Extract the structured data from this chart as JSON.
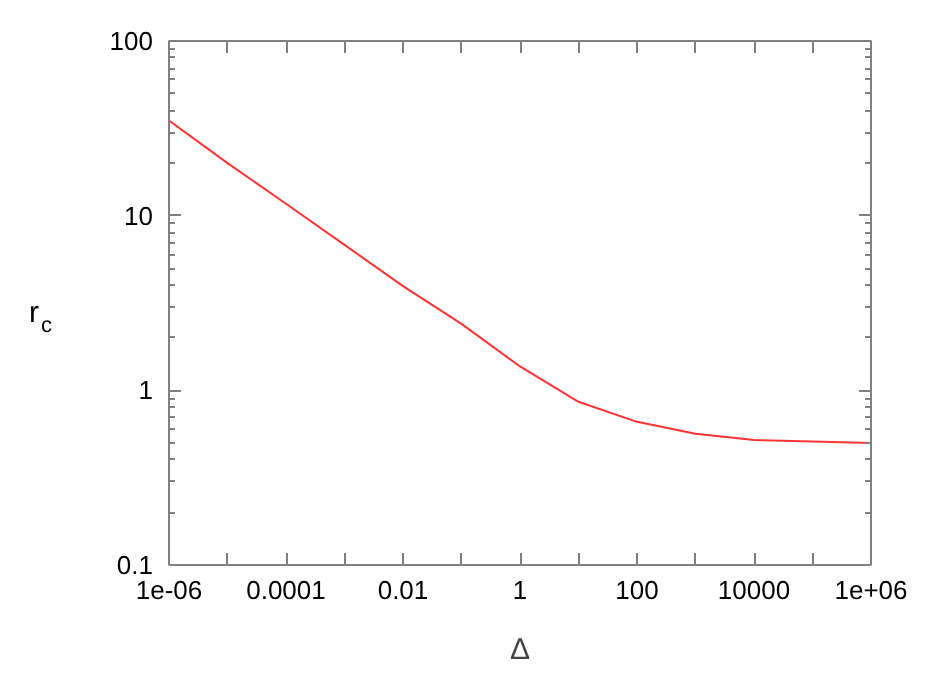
{
  "chart_data": {
    "type": "line",
    "xlabel": "Δ",
    "ylabel": "r$_{c}$",
    "log": "xy",
    "grid": false,
    "marker": "none",
    "line_style": "solid",
    "x": [
      1e-06,
      1e-05,
      0.0001,
      0.001,
      0.01,
      0.1,
      1,
      10,
      100,
      1000,
      10000,
      100000,
      1000000
    ],
    "series": [
      {
        "color": "#ff3333",
        "values": [
          35,
          20,
          11.7,
          6.8,
          3.95,
          2.4,
          1.37,
          0.86,
          0.66,
          0.564,
          0.52,
          0.51,
          0.5
        ]
      }
    ],
    "xlim": [
      1e-06,
      1000000
    ],
    "ylim": [
      0.1,
      100
    ],
    "xticks": [
      {
        "value": 1e-06,
        "label": "1e-06"
      },
      {
        "value": 1e-05,
        "label": null
      },
      0.0001,
      {
        "value": 0.001,
        "label": null
      },
      0.01,
      {
        "value": 0.1,
        "label": null
      },
      1,
      {
        "value": 10,
        "label": null
      },
      100,
      {
        "value": 1000,
        "label": null
      },
      10000,
      {
        "value": 100000,
        "label": null
      },
      {
        "value": 1000000,
        "label": "1e+06"
      }
    ],
    "yticks": [
      0.1,
      1,
      10,
      100
    ]
  }
}
